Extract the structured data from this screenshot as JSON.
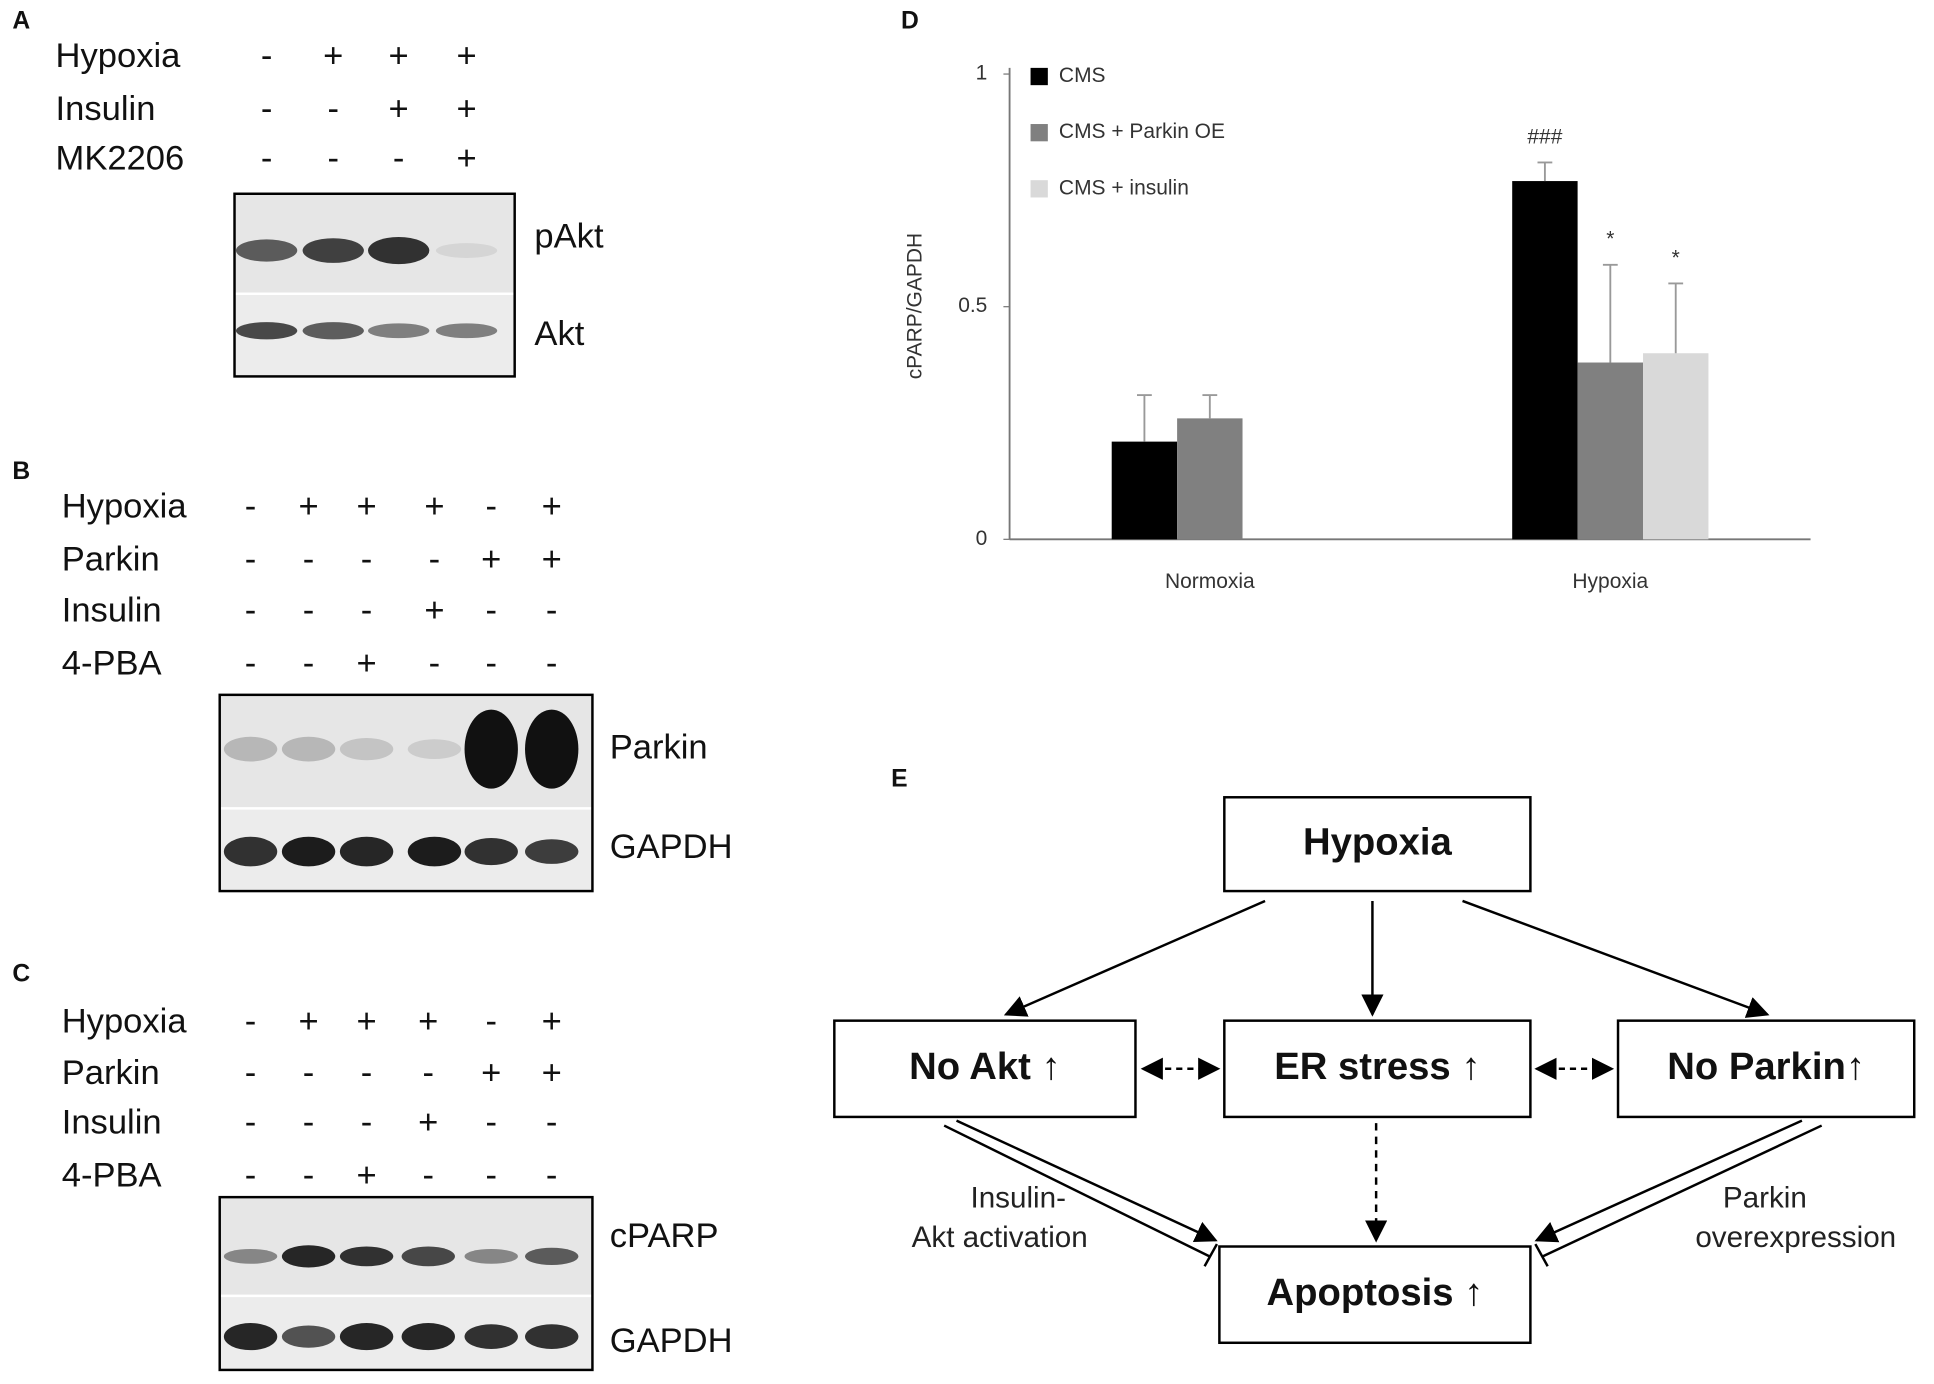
{
  "blots": [
    {
      "label": "A",
      "rows": [
        {
          "name": "Hypoxia",
          "signs": [
            "-",
            "+",
            "+",
            "+"
          ]
        },
        {
          "name": "Insulin",
          "signs": [
            "-",
            "-",
            "+",
            "+"
          ]
        },
        {
          "name": "MK2206",
          "signs": [
            "-",
            "-",
            "-",
            "+"
          ]
        }
      ],
      "bands": [
        "pAkt",
        "Akt"
      ]
    },
    {
      "label": "B",
      "rows": [
        {
          "name": "Hypoxia",
          "signs": [
            "-",
            "+",
            "+",
            "+",
            "-",
            "+"
          ]
        },
        {
          "name": "Parkin",
          "signs": [
            "-",
            "-",
            "-",
            "-",
            "+",
            "+"
          ]
        },
        {
          "name": "Insulin",
          "signs": [
            "-",
            "-",
            "-",
            "+",
            "-",
            "-"
          ]
        },
        {
          "name": "4-PBA",
          "signs": [
            "-",
            "-",
            "+",
            "-",
            "-",
            "-"
          ]
        }
      ],
      "bands": [
        "Parkin",
        "GAPDH"
      ]
    },
    {
      "label": "C",
      "rows": [
        {
          "name": "Hypoxia",
          "signs": [
            "-",
            "+",
            "+",
            "+",
            "-",
            "+"
          ]
        },
        {
          "name": "Parkin",
          "signs": [
            "-",
            "-",
            "-",
            "-",
            "+",
            "+"
          ]
        },
        {
          "name": "Insulin",
          "signs": [
            "-",
            "-",
            "-",
            "+",
            "-",
            "-"
          ]
        },
        {
          "name": "4-PBA",
          "signs": [
            "-",
            "-",
            "+",
            "-",
            "-",
            "-"
          ]
        }
      ],
      "bands": [
        "cPARP",
        "GAPDH"
      ]
    }
  ],
  "chart_data": {
    "type": "bar",
    "label": "D",
    "y_label": "cPARP/GAPDH",
    "categories": [
      "Normoxia",
      "Hypoxia"
    ],
    "series": [
      {
        "name": "CMS",
        "color": "#000000",
        "values": [
          0.21,
          0.77
        ],
        "errors": [
          0.1,
          0.04
        ],
        "marks": [
          null,
          "###"
        ]
      },
      {
        "name": "CMS + Parkin OE",
        "color": "#808080",
        "values": [
          0.26,
          0.38
        ],
        "errors": [
          0.05,
          0.21
        ],
        "marks": [
          null,
          "*"
        ]
      },
      {
        "name": "CMS + insulin",
        "color": "#d9d9d9",
        "values": [
          null,
          0.4
        ],
        "errors": [
          null,
          0.15
        ],
        "marks": [
          null,
          "*"
        ]
      }
    ],
    "ylim": [
      0,
      1
    ],
    "yticks": [
      0,
      0.5,
      1
    ],
    "legend": "top-left"
  },
  "diagram": {
    "label": "E",
    "nodes": [
      {
        "label": "Hypoxia"
      },
      {
        "label": "No Akt ↑"
      },
      {
        "label": "ER stress ↑"
      },
      {
        "label": "No Parkin↑"
      },
      {
        "label": "Apoptosis ↑"
      }
    ],
    "edge_labels": [
      {
        "lines": [
          "Insulin-",
          "Akt activation"
        ]
      },
      {
        "lines": [
          "Parkin",
          "overexpression"
        ]
      }
    ]
  }
}
